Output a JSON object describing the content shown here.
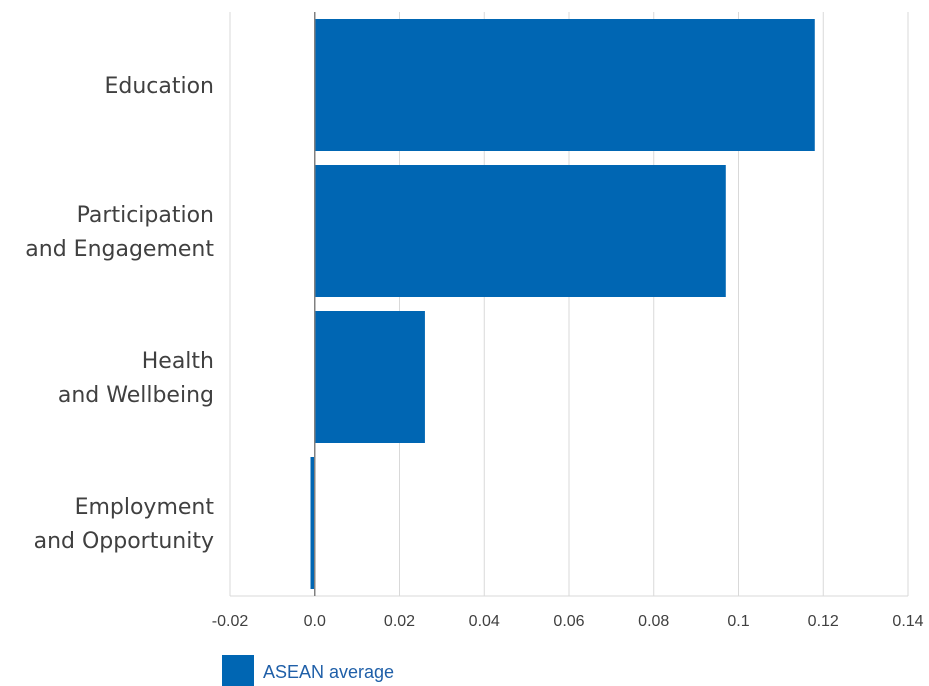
{
  "chart_data": {
    "type": "bar",
    "orientation": "horizontal",
    "categories": [
      [
        "Education"
      ],
      [
        "Participation",
        "and Engagement"
      ],
      [
        "Health",
        "and Wellbeing"
      ],
      [
        "Employment",
        "and Opportunity"
      ]
    ],
    "series": [
      {
        "name": "ASEAN average",
        "values": [
          0.118,
          0.097,
          0.026,
          -0.001
        ]
      }
    ],
    "xlim": [
      -0.02,
      0.14
    ],
    "xticks": [
      -0.02,
      0.0,
      0.02,
      0.04,
      0.06,
      0.08,
      0.1,
      0.12,
      0.14
    ],
    "xtick_labels": [
      "-0.02",
      "0.0",
      "0.02",
      "0.04",
      "0.06",
      "0.08",
      "0.1",
      "0.12",
      "0.14"
    ],
    "grid": "vertical",
    "legend": "bottom-left",
    "colors": {
      "bar": "#0066b3",
      "grid": "#d9d9d9",
      "axis": "#808080"
    }
  }
}
